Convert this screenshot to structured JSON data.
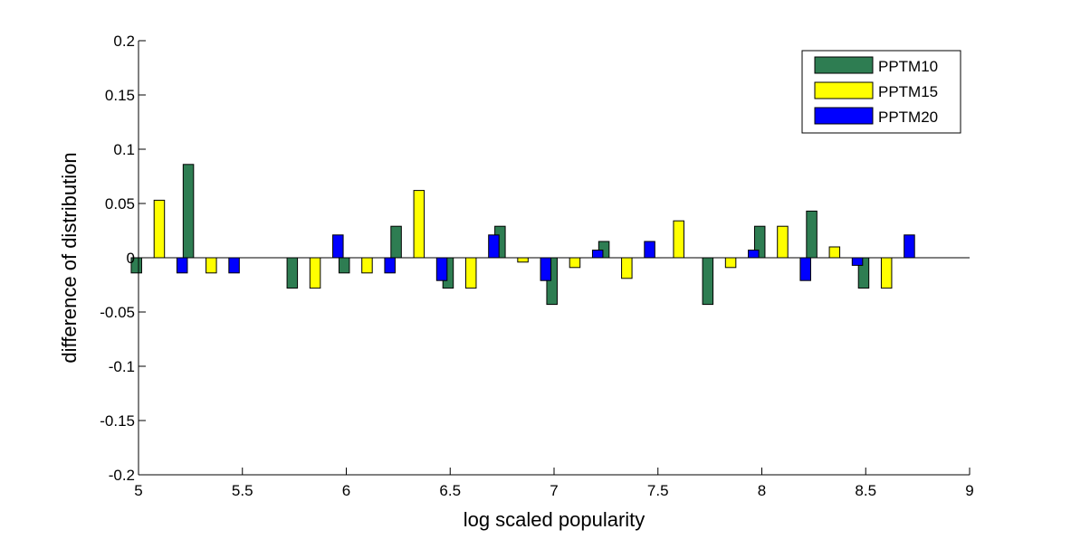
{
  "chart_data": {
    "type": "bar",
    "title": "",
    "xlabel": "log scaled popularity",
    "ylabel": "difference of distribution",
    "xlim": [
      5,
      9
    ],
    "ylim": [
      -0.2,
      0.2
    ],
    "x_ticks": [
      "5",
      "5.5",
      "6",
      "6.5",
      "7",
      "7.5",
      "8",
      "8.5",
      "9"
    ],
    "y_ticks": [
      "-0.2",
      "-0.15",
      "-0.1",
      "-0.05",
      "0",
      "0.05",
      "0.1",
      "0.15",
      "0.2"
    ],
    "x_tick_values": [
      5,
      5.5,
      6,
      6.5,
      7,
      7.5,
      8,
      8.5,
      9
    ],
    "y_tick_values": [
      -0.2,
      -0.15,
      -0.1,
      -0.05,
      0,
      0.05,
      0.1,
      0.15,
      0.2
    ],
    "x": [
      5.1,
      5.35,
      5.85,
      6.1,
      6.35,
      6.6,
      6.85,
      7.1,
      7.35,
      7.6,
      7.85,
      8.1,
      8.35,
      8.6
    ],
    "series": [
      {
        "name": "PPTM10",
        "color": "#2e7d52",
        "values": [
          -0.014,
          0.086,
          -0.028,
          -0.014,
          0.029,
          -0.028,
          0.029,
          -0.043,
          0.015,
          0.0,
          -0.043,
          0.029,
          0.043,
          -0.028
        ]
      },
      {
        "name": "PPTM15",
        "color": "#ffff00",
        "values": [
          0.053,
          -0.014,
          -0.028,
          -0.014,
          0.062,
          -0.028,
          -0.004,
          -0.009,
          -0.019,
          0.034,
          -0.009,
          0.029,
          0.01,
          -0.028
        ]
      },
      {
        "name": "PPTM20",
        "color": "#0000ff",
        "values": [
          -0.014,
          -0.014,
          0.021,
          -0.014,
          -0.021,
          0.021,
          -0.021,
          0.007,
          0.015,
          0.0,
          0.007,
          -0.021,
          -0.007,
          0.021
        ]
      }
    ],
    "grid": false,
    "legend_position": "top-right"
  }
}
